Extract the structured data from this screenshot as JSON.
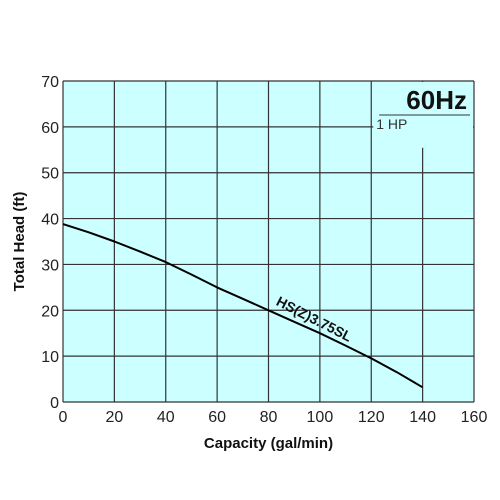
{
  "chart_data": {
    "type": "line",
    "xlabel": "Capacity (gal/min)",
    "ylabel": "Total Head (ft)",
    "xlim": [
      0,
      160
    ],
    "ylim": [
      0,
      70
    ],
    "x_ticks": [
      0,
      20,
      40,
      60,
      80,
      100,
      120,
      140,
      160
    ],
    "y_ticks": [
      0,
      10,
      20,
      30,
      40,
      50,
      60,
      70
    ],
    "grid": true,
    "legend": "none",
    "annotations": {
      "frequency": "60Hz",
      "power": "1 HP"
    },
    "series": [
      {
        "name": "HS(Z)3.75SL",
        "x": [
          0,
          10,
          20,
          30,
          40,
          50,
          60,
          70,
          80,
          90,
          100,
          110,
          120,
          130,
          140
        ],
        "y": [
          38.8,
          37.0,
          35.0,
          32.8,
          30.5,
          27.8,
          25.0,
          22.5,
          20.0,
          17.5,
          15.0,
          12.3,
          9.5,
          6.5,
          3.2
        ]
      }
    ]
  },
  "colors": {
    "plot_background": "#ccffff",
    "grid": "#333333",
    "curve": "#000000"
  }
}
